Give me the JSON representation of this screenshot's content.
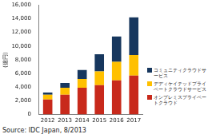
{
  "chart_data": {
    "type": "bar",
    "stacked": true,
    "categories": [
      "2012",
      "2013",
      "2014",
      "2015",
      "2016",
      "2017"
    ],
    "series": [
      {
        "name": "コミュニティクラウドサービス",
        "color": "#17375e",
        "values": [
          300,
          700,
          1300,
          2500,
          3700,
          5500
        ]
      },
      {
        "name": "デディケイテッドプライベートクラウドサービス",
        "color": "#ffc000",
        "values": [
          700,
          1000,
          1300,
          2000,
          2700,
          3000
        ]
      },
      {
        "name": "オンプレミスプライベートクラウド",
        "color": "#c8291b",
        "values": [
          2200,
          2900,
          3900,
          4300,
          5000,
          5700
        ]
      }
    ],
    "y_label": "(億円)",
    "ylim": [
      0,
      16000
    ],
    "yticks": [
      0,
      {
        "value": 2000,
        "label": "2,000"
      },
      {
        "value": 4000,
        "label": "4,000"
      },
      {
        "value": 6000,
        "label": "6,000"
      },
      {
        "value": 8000,
        "label": "8,000"
      },
      {
        "value": 10000,
        "label": "10,000"
      },
      {
        "value": 12000,
        "label": "12,000"
      },
      {
        "value": 14000,
        "label": "14,000"
      },
      {
        "value": 16000,
        "label": "16,000"
      }
    ],
    "grid": false,
    "legend": "right",
    "source": "Source: IDC Japan, 8/2013"
  }
}
